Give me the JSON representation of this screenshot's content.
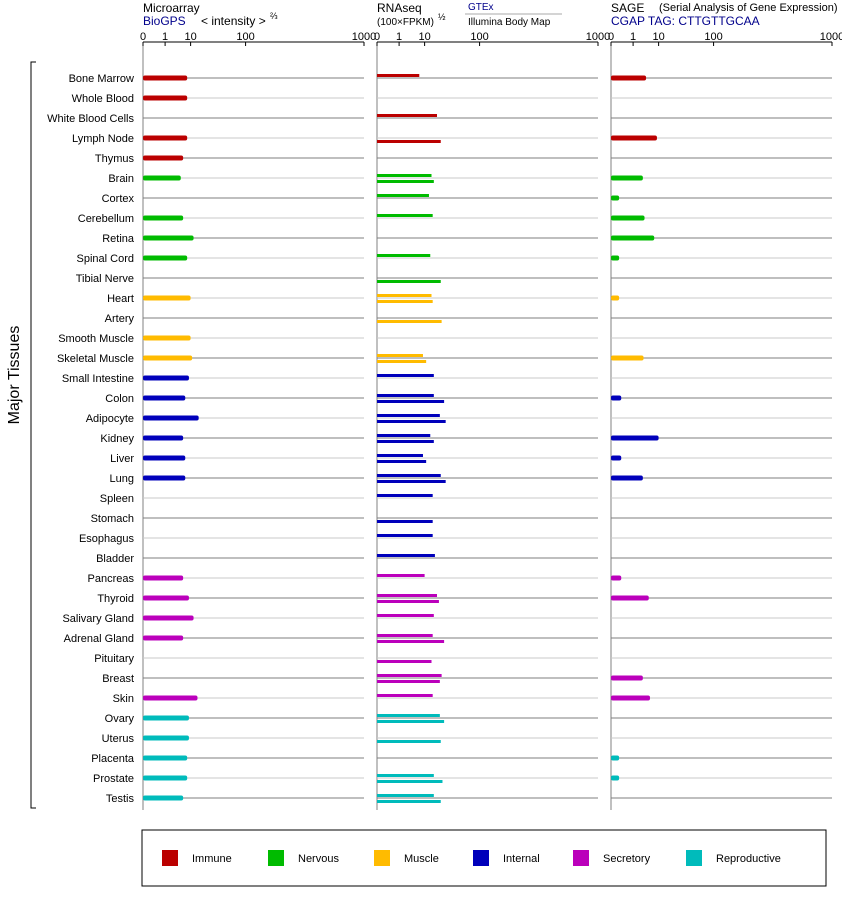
{
  "panels": [
    {
      "title": "Microarray",
      "subtitle": "BioGPS",
      "note": "< intensity >",
      "note_sup": "⅔",
      "subnote": ""
    },
    {
      "title": "RNAseq",
      "subtitle": "(100×FPKM)",
      "note": "GTEx",
      "note_sup": "½",
      "subnote": "Illumina Body Map"
    },
    {
      "title": "SAGE",
      "subtitle": "CGAP TAG: CTTGTTGCAA",
      "note": "(Serial Analysis of Gene Expression)",
      "note_sup": "",
      "subnote": ""
    }
  ],
  "axis_ticks": [
    "0",
    "1",
    "10",
    "100",
    "1000"
  ],
  "y_axis_label": "Major Tissues",
  "legend": [
    {
      "label": "Immune",
      "color": "#bb0000"
    },
    {
      "label": "Nervous",
      "color": "#00bb00"
    },
    {
      "label": "Muscle",
      "color": "#ffbb00"
    },
    {
      "label": "Internal",
      "color": "#0000bb"
    },
    {
      "label": "Secretory",
      "color": "#bb00bb"
    },
    {
      "label": "Reproductive",
      "color": "#00bbbb"
    }
  ],
  "chart_data": {
    "type": "bar",
    "title": "",
    "xlabel": "",
    "ylabel": "Major Tissues",
    "scale": "power",
    "xlim": [
      0,
      1000
    ],
    "x_ticks": [
      0,
      1,
      10,
      100,
      1000
    ],
    "grid": true,
    "legend_position": "bottom",
    "categories": [
      "Bone Marrow",
      "Whole Blood",
      "White Blood Cells",
      "Lymph Node",
      "Thymus",
      "Brain",
      "Cortex",
      "Cerebellum",
      "Retina",
      "Spinal Cord",
      "Tibial Nerve",
      "Heart",
      "Artery",
      "Smooth Muscle",
      "Skeletal Muscle",
      "Small Intestine",
      "Colon",
      "Adipocyte",
      "Kidney",
      "Liver",
      "Lung",
      "Spleen",
      "Stomach",
      "Esophagus",
      "Bladder",
      "Pancreas",
      "Thyroid",
      "Salivary Gland",
      "Adrenal Gland",
      "Pituitary",
      "Breast",
      "Skin",
      "Ovary",
      "Uterus",
      "Placenta",
      "Prostate",
      "Testis"
    ],
    "groups": [
      "Immune",
      "Immune",
      "Immune",
      "Immune",
      "Immune",
      "Nervous",
      "Nervous",
      "Nervous",
      "Nervous",
      "Nervous",
      "Nervous",
      "Muscle",
      "Muscle",
      "Muscle",
      "Muscle",
      "Internal",
      "Internal",
      "Internal",
      "Internal",
      "Internal",
      "Internal",
      "Internal",
      "Internal",
      "Internal",
      "Internal",
      "Secretory",
      "Secretory",
      "Secretory",
      "Secretory",
      "Secretory",
      "Secretory",
      "Secretory",
      "Reproductive",
      "Reproductive",
      "Reproductive",
      "Reproductive",
      "Reproductive"
    ],
    "series": [
      {
        "name": "Microarray",
        "values": [
          8,
          8,
          null,
          8,
          6,
          5,
          null,
          6,
          12,
          8,
          null,
          10,
          null,
          10,
          11,
          9,
          7,
          16,
          6,
          7,
          7,
          null,
          null,
          null,
          null,
          6,
          9,
          12,
          6,
          null,
          null,
          15,
          9,
          9,
          8,
          8,
          6
        ]
      },
      {
        "name": "GTEx",
        "values": [
          7,
          null,
          20,
          null,
          null,
          15,
          13,
          16,
          null,
          14,
          null,
          15,
          null,
          null,
          9,
          17,
          17,
          23,
          14,
          9,
          24,
          16,
          null,
          16,
          18,
          10,
          20,
          17,
          16,
          null,
          25,
          16,
          23,
          null,
          null,
          17,
          17
        ]
      },
      {
        "name": "Illumina Body Map",
        "values": [
          null,
          null,
          null,
          24,
          null,
          17,
          null,
          null,
          null,
          null,
          24,
          16,
          25,
          null,
          11,
          null,
          28,
          30,
          17,
          11,
          30,
          null,
          16,
          null,
          null,
          null,
          22,
          null,
          28,
          15,
          23,
          null,
          28,
          24,
          null,
          26,
          24
        ]
      },
      {
        "name": "SAGE",
        "values": [
          4,
          null,
          null,
          9,
          null,
          3,
          0.05,
          3.5,
          7.5,
          0.05,
          null,
          0.05,
          null,
          null,
          3.2,
          null,
          0.1,
          null,
          10,
          0.1,
          3,
          null,
          null,
          null,
          null,
          0.1,
          5,
          null,
          null,
          null,
          3,
          5.5,
          null,
          null,
          0.05,
          0.05,
          null
        ]
      }
    ]
  }
}
